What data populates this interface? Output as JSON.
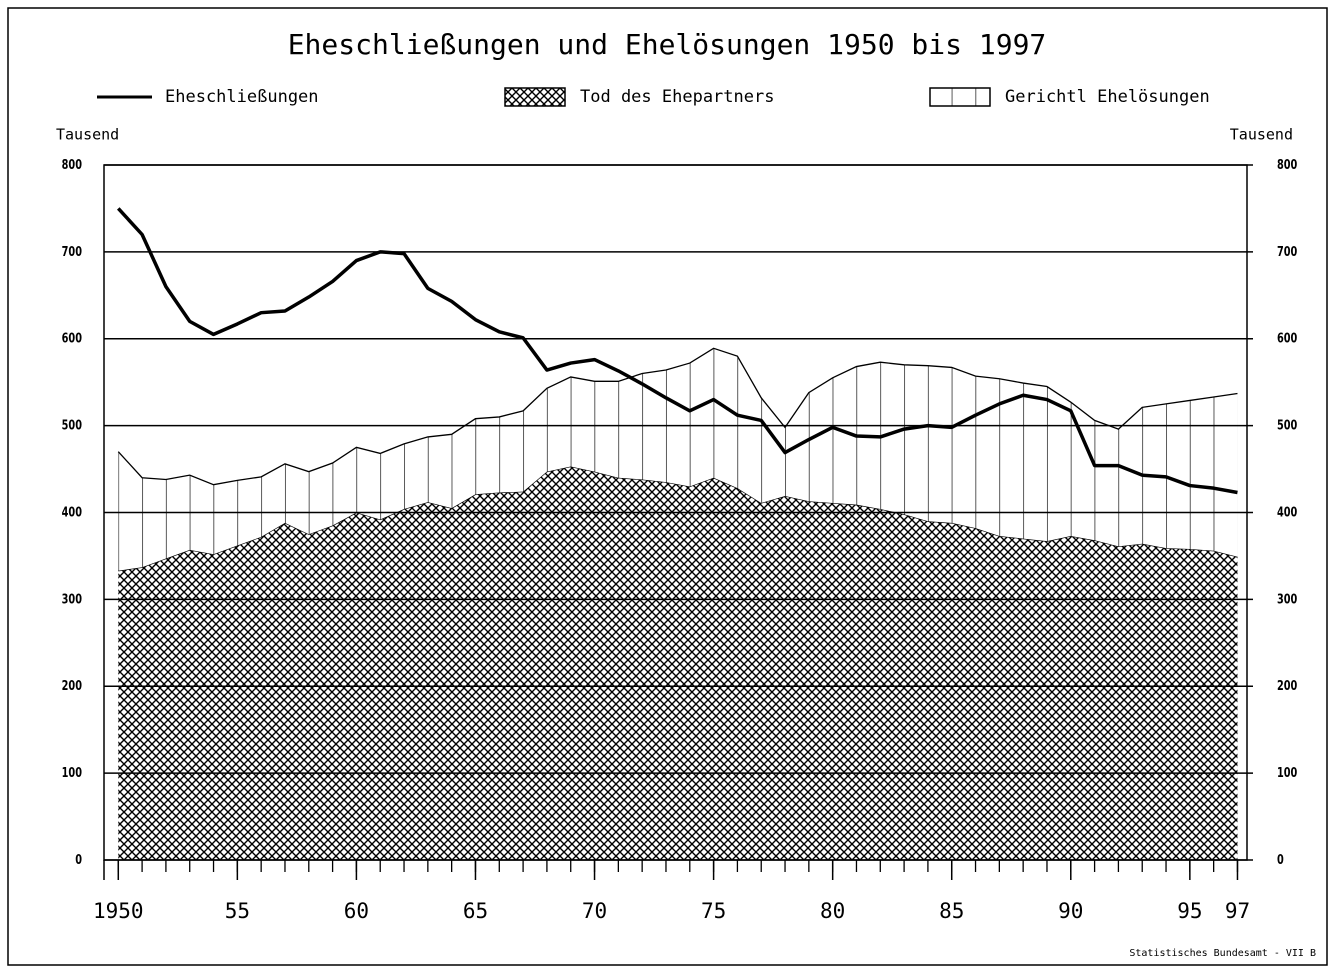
{
  "chart_data": {
    "type": "area",
    "title": "Eheschließungen und Ehelösungen 1950 bis 1997",
    "y_label": "Tausend",
    "y2_label": "Tausend",
    "source": "Statistisches Bundesamt - VII B",
    "x": [
      1950,
      1951,
      1952,
      1953,
      1954,
      1955,
      1956,
      1957,
      1958,
      1959,
      1960,
      1961,
      1962,
      1963,
      1964,
      1965,
      1966,
      1967,
      1968,
      1969,
      1970,
      1971,
      1972,
      1973,
      1974,
      1975,
      1976,
      1977,
      1978,
      1979,
      1980,
      1981,
      1982,
      1983,
      1984,
      1985,
      1986,
      1987,
      1988,
      1989,
      1990,
      1991,
      1992,
      1993,
      1994,
      1995,
      1996,
      1997
    ],
    "stacked": true,
    "series": [
      {
        "name": "Eheschließungen",
        "type": "line",
        "color": "#000000",
        "values": [
          750,
          720,
          660,
          620,
          605,
          617,
          630,
          632,
          648,
          666,
          690,
          700,
          698,
          658,
          643,
          622,
          608,
          601,
          564,
          572,
          576,
          563,
          548,
          532,
          517,
          530,
          512,
          506,
          469,
          484,
          498,
          488,
          487,
          496,
          500,
          498,
          512,
          525,
          535,
          530,
          517,
          454,
          454,
          443,
          441,
          431,
          428,
          423
        ]
      },
      {
        "name": "Tod des Ehepartners",
        "type": "area",
        "pattern": "crosshatch",
        "color": "#000000",
        "values": [
          333,
          337,
          347,
          357,
          352,
          362,
          372,
          388,
          375,
          385,
          400,
          392,
          404,
          412,
          405,
          421,
          423,
          424,
          447,
          453,
          447,
          440,
          438,
          435,
          430,
          440,
          428,
          411,
          419,
          413,
          411,
          409,
          404,
          398,
          390,
          388,
          382,
          373,
          370,
          367,
          373,
          368,
          361,
          364,
          359,
          358,
          356,
          349
        ]
      },
      {
        "name": "Gerichtl  Ehelösungen",
        "type": "area",
        "pattern": "vertical",
        "color": "#000000",
        "values": [
          137,
          103,
          91,
          86,
          80,
          75,
          69,
          68,
          72,
          72,
          75,
          76,
          75,
          75,
          85,
          87,
          87,
          93,
          96,
          103,
          104,
          111,
          122,
          129,
          142,
          149,
          152,
          121,
          79,
          125,
          144,
          159,
          169,
          172,
          179,
          179,
          175,
          181,
          179,
          178,
          154,
          138,
          135,
          157,
          166,
          171,
          177,
          188
        ]
      }
    ],
    "xlim": [
      1949.4,
      1997.4
    ],
    "xticks": [
      {
        "value": 1950,
        "label": "1950"
      },
      {
        "value": 1955,
        "label": "55"
      },
      {
        "value": 1960,
        "label": "60"
      },
      {
        "value": 1965,
        "label": "65"
      },
      {
        "value": 1970,
        "label": "70"
      },
      {
        "value": 1975,
        "label": "75"
      },
      {
        "value": 1980,
        "label": "80"
      },
      {
        "value": 1985,
        "label": "85"
      },
      {
        "value": 1990,
        "label": "90"
      },
      {
        "value": 1995,
        "label": "95"
      },
      {
        "value": 1997,
        "label": "97"
      }
    ],
    "ylim": [
      0,
      800
    ],
    "yticks": [
      0,
      100,
      200,
      300,
      400,
      500,
      600,
      700,
      800
    ],
    "y2lim": [
      0,
      800
    ],
    "y2ticks": [
      0,
      100,
      200,
      300,
      400,
      500,
      600,
      700,
      800
    ],
    "grid": true
  }
}
